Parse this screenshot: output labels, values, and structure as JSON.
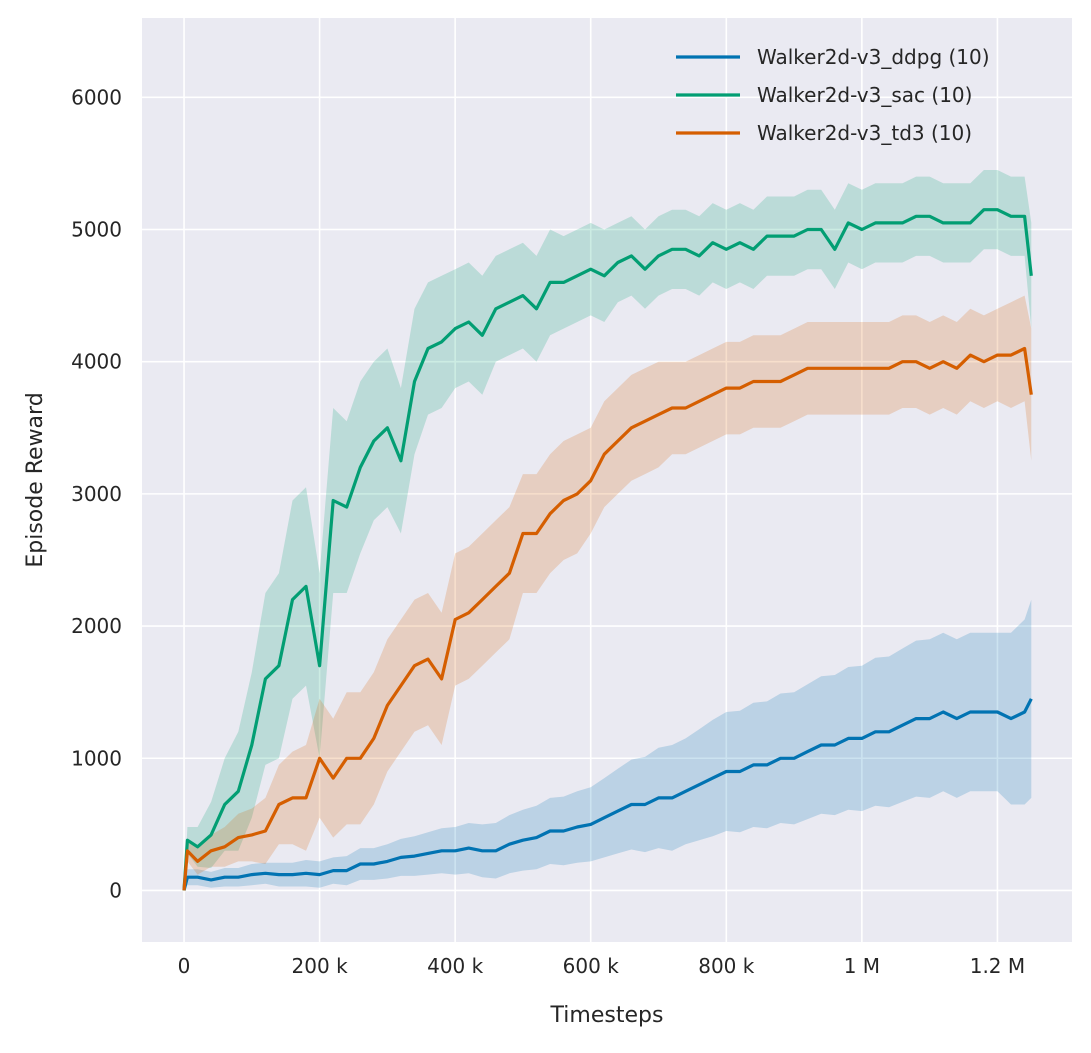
{
  "chart_data": {
    "type": "line",
    "title": "",
    "xlabel": "Timesteps",
    "ylabel": "Episode Reward",
    "xlim": [
      -62000,
      1310000
    ],
    "ylim": [
      -390,
      6600
    ],
    "grid": true,
    "legend_position": "top-right",
    "background": "#eaeaf2",
    "x_ticks": [
      0,
      200000,
      400000,
      600000,
      800000,
      1000000,
      1200000
    ],
    "x_tick_labels": [
      "0",
      "200 k",
      "400 k",
      "600 k",
      "800 k",
      "1 M",
      "1.2 M"
    ],
    "y_ticks": [
      0,
      1000,
      2000,
      3000,
      4000,
      5000,
      6000
    ],
    "y_tick_labels": [
      "0",
      "1000",
      "2000",
      "3000",
      "4000",
      "5000",
      "6000"
    ],
    "x": [
      0,
      5000,
      20000,
      40000,
      60000,
      80000,
      100000,
      120000,
      140000,
      160000,
      180000,
      200000,
      220000,
      240000,
      260000,
      280000,
      300000,
      320000,
      340000,
      360000,
      380000,
      400000,
      420000,
      440000,
      460000,
      480000,
      500000,
      520000,
      540000,
      560000,
      580000,
      600000,
      620000,
      640000,
      660000,
      680000,
      700000,
      720000,
      740000,
      760000,
      780000,
      800000,
      820000,
      840000,
      860000,
      880000,
      900000,
      920000,
      940000,
      960000,
      980000,
      1000000,
      1020000,
      1040000,
      1060000,
      1080000,
      1100000,
      1120000,
      1140000,
      1160000,
      1180000,
      1200000,
      1220000,
      1240000,
      1250000
    ],
    "series": [
      {
        "name": "Walker2d-v3_ddpg (10)",
        "color": "#0173b2",
        "mean": [
          0,
          100,
          100,
          80,
          100,
          100,
          120,
          130,
          120,
          120,
          130,
          120,
          150,
          150,
          200,
          200,
          220,
          250,
          260,
          280,
          300,
          300,
          320,
          300,
          300,
          350,
          380,
          400,
          450,
          450,
          480,
          500,
          550,
          600,
          650,
          650,
          700,
          700,
          750,
          800,
          850,
          900,
          900,
          950,
          950,
          1000,
          1000,
          1050,
          1100,
          1100,
          1150,
          1150,
          1200,
          1200,
          1250,
          1300,
          1300,
          1350,
          1300,
          1350,
          1350,
          1350,
          1300,
          1350,
          1450
        ],
        "ci": [
          0,
          60,
          60,
          60,
          70,
          70,
          80,
          80,
          90,
          90,
          100,
          100,
          100,
          110,
          120,
          120,
          130,
          140,
          150,
          160,
          170,
          180,
          190,
          200,
          210,
          220,
          230,
          240,
          250,
          260,
          270,
          280,
          300,
          320,
          340,
          360,
          380,
          400,
          400,
          420,
          440,
          450,
          460,
          470,
          480,
          490,
          500,
          510,
          520,
          530,
          540,
          550,
          560,
          570,
          580,
          590,
          600,
          600,
          600,
          600,
          600,
          600,
          650,
          700,
          750
        ]
      },
      {
        "name": "Walker2d-v3_sac (10)",
        "color": "#029e73",
        "mean": [
          0,
          380,
          330,
          420,
          650,
          750,
          1100,
          1600,
          1700,
          2200,
          2300,
          1700,
          2950,
          2900,
          3200,
          3400,
          3500,
          3250,
          3850,
          4100,
          4150,
          4250,
          4300,
          4200,
          4400,
          4450,
          4500,
          4400,
          4600,
          4600,
          4650,
          4700,
          4650,
          4750,
          4800,
          4700,
          4800,
          4850,
          4850,
          4800,
          4900,
          4850,
          4900,
          4850,
          4950,
          4950,
          4950,
          5000,
          5000,
          4850,
          5050,
          5000,
          5050,
          5050,
          5050,
          5100,
          5100,
          5050,
          5050,
          5050,
          5150,
          5150,
          5100,
          5100,
          4650
        ],
        "ci": [
          0,
          100,
          150,
          250,
          350,
          450,
          550,
          650,
          700,
          750,
          750,
          700,
          700,
          650,
          650,
          600,
          600,
          550,
          550,
          500,
          500,
          450,
          450,
          450,
          400,
          400,
          400,
          400,
          400,
          350,
          350,
          350,
          350,
          300,
          300,
          300,
          300,
          300,
          300,
          300,
          300,
          300,
          300,
          300,
          300,
          300,
          300,
          300,
          300,
          300,
          300,
          300,
          300,
          300,
          300,
          300,
          300,
          300,
          300,
          300,
          300,
          300,
          300,
          300,
          400
        ]
      },
      {
        "name": "Walker2d-v3_td3 (10)",
        "color": "#d55e00",
        "mean": [
          0,
          300,
          220,
          300,
          330,
          400,
          420,
          450,
          650,
          700,
          700,
          1000,
          850,
          1000,
          1000,
          1150,
          1400,
          1550,
          1700,
          1750,
          1600,
          2050,
          2100,
          2200,
          2300,
          2400,
          2700,
          2700,
          2850,
          2950,
          3000,
          3100,
          3300,
          3400,
          3500,
          3550,
          3600,
          3650,
          3650,
          3700,
          3750,
          3800,
          3800,
          3850,
          3850,
          3850,
          3900,
          3950,
          3950,
          3950,
          3950,
          3950,
          3950,
          3950,
          4000,
          4000,
          3950,
          4000,
          3950,
          4050,
          4000,
          4050,
          4050,
          4100,
          3750
        ],
        "ci": [
          0,
          80,
          100,
          120,
          150,
          180,
          200,
          250,
          300,
          350,
          400,
          450,
          450,
          500,
          500,
          500,
          500,
          500,
          500,
          500,
          500,
          500,
          500,
          500,
          500,
          500,
          450,
          450,
          450,
          450,
          450,
          400,
          400,
          400,
          400,
          400,
          400,
          350,
          350,
          350,
          350,
          350,
          350,
          350,
          350,
          350,
          350,
          350,
          350,
          350,
          350,
          350,
          350,
          350,
          350,
          350,
          350,
          350,
          350,
          350,
          350,
          350,
          400,
          400,
          500
        ]
      }
    ]
  }
}
